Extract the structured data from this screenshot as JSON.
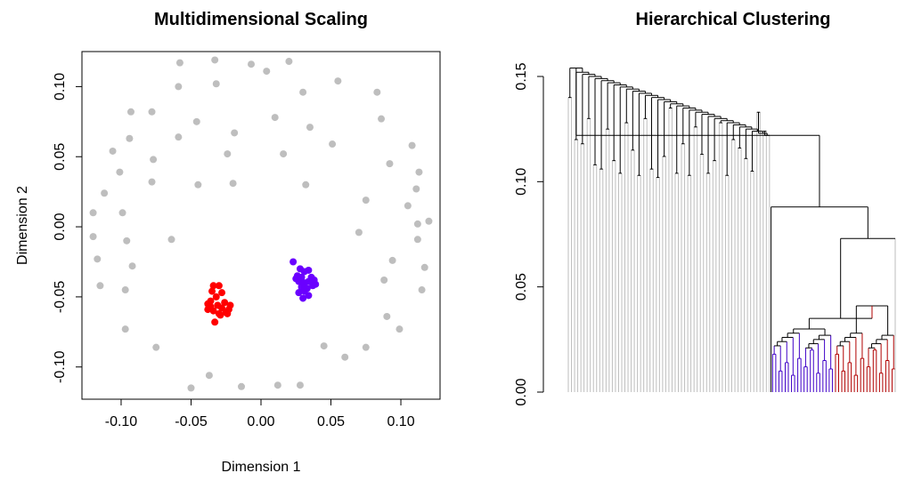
{
  "chart_data": [
    {
      "type": "scatter",
      "title": "Multidimensional Scaling",
      "xlabel": "Dimension 1",
      "ylabel": "Dimension 2",
      "xlim": [
        -0.128,
        0.128
      ],
      "ylim": [
        -0.123,
        0.125
      ],
      "xticks": [
        "-0.10",
        "-0.05",
        "0.00",
        "0.05",
        "0.10"
      ],
      "yticks": [
        "-0.10",
        "-0.05",
        "0.00",
        "0.05",
        "0.10"
      ],
      "box": true,
      "grid": false,
      "colors": {
        "gray": "#bebebe",
        "red": "#ff0000",
        "blue": "#6a00ff"
      },
      "series": [
        {
          "color": "#bebebe",
          "points": [
            [
              -0.058,
              0.117
            ],
            [
              -0.033,
              0.119
            ],
            [
              -0.007,
              0.116
            ],
            [
              0.02,
              0.118
            ],
            [
              -0.059,
              0.1
            ],
            [
              -0.032,
              0.102
            ],
            [
              0.004,
              0.111
            ],
            [
              0.055,
              0.104
            ],
            [
              -0.093,
              0.082
            ],
            [
              -0.078,
              0.082
            ],
            [
              0.03,
              0.096
            ],
            [
              0.083,
              0.096
            ],
            [
              -0.046,
              0.075
            ],
            [
              0.01,
              0.078
            ],
            [
              0.086,
              0.077
            ],
            [
              0.035,
              0.071
            ],
            [
              -0.094,
              0.063
            ],
            [
              -0.059,
              0.064
            ],
            [
              -0.019,
              0.067
            ],
            [
              0.051,
              0.059
            ],
            [
              0.108,
              0.058
            ],
            [
              -0.106,
              0.054
            ],
            [
              -0.024,
              0.052
            ],
            [
              0.016,
              0.052
            ],
            [
              0.092,
              0.045
            ],
            [
              -0.101,
              0.039
            ],
            [
              -0.077,
              0.048
            ],
            [
              0.113,
              0.039
            ],
            [
              -0.045,
              0.03
            ],
            [
              -0.078,
              0.032
            ],
            [
              -0.02,
              0.031
            ],
            [
              0.032,
              0.03
            ],
            [
              0.111,
              0.027
            ],
            [
              -0.112,
              0.024
            ],
            [
              0.075,
              0.019
            ],
            [
              0.105,
              0.015
            ],
            [
              -0.12,
              0.01
            ],
            [
              -0.099,
              0.01
            ],
            [
              0.112,
              0.002
            ],
            [
              0.12,
              0.004
            ],
            [
              -0.12,
              -0.007
            ],
            [
              -0.096,
              -0.01
            ],
            [
              -0.064,
              -0.009
            ],
            [
              0.07,
              -0.004
            ],
            [
              0.112,
              -0.009
            ],
            [
              -0.117,
              -0.023
            ],
            [
              -0.092,
              -0.028
            ],
            [
              0.094,
              -0.024
            ],
            [
              0.117,
              -0.029
            ],
            [
              -0.115,
              -0.042
            ],
            [
              -0.097,
              -0.045
            ],
            [
              0.088,
              -0.038
            ],
            [
              0.115,
              -0.045
            ],
            [
              -0.097,
              -0.073
            ],
            [
              0.09,
              -0.064
            ],
            [
              0.099,
              -0.073
            ],
            [
              -0.075,
              -0.086
            ],
            [
              0.045,
              -0.085
            ],
            [
              0.075,
              -0.086
            ],
            [
              0.06,
              -0.093
            ],
            [
              -0.037,
              -0.106
            ],
            [
              0.028,
              -0.113
            ],
            [
              -0.05,
              -0.115
            ],
            [
              -0.014,
              -0.114
            ],
            [
              0.012,
              -0.113
            ]
          ]
        },
        {
          "color": "#ff0000",
          "points": [
            [
              -0.034,
              -0.042
            ],
            [
              -0.03,
              -0.042
            ],
            [
              -0.035,
              -0.046
            ],
            [
              -0.028,
              -0.047
            ],
            [
              -0.032,
              -0.05
            ],
            [
              -0.036,
              -0.053
            ],
            [
              -0.026,
              -0.054
            ],
            [
              -0.031,
              -0.056
            ],
            [
              -0.036,
              -0.057
            ],
            [
              -0.022,
              -0.056
            ],
            [
              -0.028,
              -0.058
            ],
            [
              -0.034,
              -0.06
            ],
            [
              -0.025,
              -0.061
            ],
            [
              -0.03,
              -0.062
            ],
            [
              -0.038,
              -0.059
            ],
            [
              -0.023,
              -0.059
            ],
            [
              -0.033,
              -0.068
            ],
            [
              -0.029,
              -0.063
            ],
            [
              -0.024,
              -0.062
            ],
            [
              -0.038,
              -0.055
            ]
          ]
        },
        {
          "color": "#6a00ff",
          "points": [
            [
              0.023,
              -0.025
            ],
            [
              0.028,
              -0.03
            ],
            [
              0.031,
              -0.032
            ],
            [
              0.034,
              -0.031
            ],
            [
              0.026,
              -0.035
            ],
            [
              0.029,
              -0.036
            ],
            [
              0.036,
              -0.036
            ],
            [
              0.027,
              -0.039
            ],
            [
              0.031,
              -0.04
            ],
            [
              0.034,
              -0.039
            ],
            [
              0.038,
              -0.038
            ],
            [
              0.029,
              -0.043
            ],
            [
              0.033,
              -0.044
            ],
            [
              0.037,
              -0.042
            ],
            [
              0.031,
              -0.046
            ],
            [
              0.034,
              -0.049
            ],
            [
              0.03,
              -0.051
            ],
            [
              0.027,
              -0.047
            ],
            [
              0.039,
              -0.041
            ],
            [
              0.025,
              -0.037
            ]
          ]
        }
      ]
    },
    {
      "type": "dendrogram",
      "title": "Hierarchical Clustering",
      "ylim": [
        0,
        0.155
      ],
      "yticks": [
        "0.00",
        "0.05",
        "0.10",
        "0.15"
      ],
      "box": false,
      "grid": false,
      "n_leaves": 105,
      "leaf_groups": [
        {
          "color": "#bebebe",
          "count": 65
        },
        {
          "color": "#3f00c8",
          "count": 20
        },
        {
          "color": "#b00000",
          "count": 20
        }
      ],
      "big_cluster_heights": [
        0.156,
        0.154,
        0.152,
        0.151,
        0.15,
        0.149,
        0.148,
        0.147,
        0.146,
        0.145,
        0.144,
        0.143,
        0.142,
        0.141,
        0.14,
        0.139,
        0.138,
        0.137,
        0.136,
        0.135,
        0.134,
        0.133,
        0.132,
        0.131,
        0.13,
        0.129,
        0.128,
        0.127,
        0.126,
        0.125,
        0.124,
        0.123,
        0.122
      ],
      "pair_merge_heights": [
        0.14,
        0.12,
        0.118,
        0.13,
        0.108,
        0.106,
        0.125,
        0.11,
        0.104,
        0.128,
        0.115,
        0.103,
        0.13,
        0.106,
        0.102,
        0.112,
        0.135,
        0.104,
        0.118,
        0.103,
        0.126,
        0.113,
        0.104,
        0.11,
        0.128,
        0.103,
        0.12,
        0.116,
        0.111,
        0.105,
        0.133,
        0.124
      ],
      "small_merge_heights": {
        "top": 0.088,
        "next": 0.073,
        "groups_join": 0.035,
        "blue_top": 0.03,
        "red_top": 0.041
      }
    }
  ]
}
